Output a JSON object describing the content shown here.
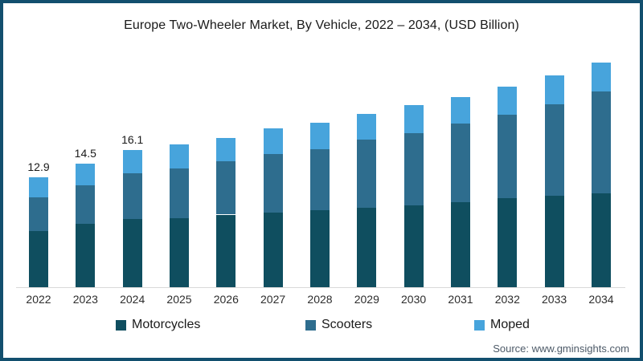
{
  "title": "Europe Two-Wheeler Market, By Vehicle, 2022 – 2034, (USD Billion)",
  "source": "Source: www.gminsights.com",
  "colors": {
    "frame_border": "#124F6E",
    "axis_line": "#D9D9D9",
    "title_text": "#1A1A1A",
    "axis_label_text": "#2D2D2D",
    "source_text": "#4D5A68"
  },
  "chart_data": {
    "type": "bar",
    "stacked": true,
    "title": "Europe Two-Wheeler Market, By Vehicle, 2022 – 2034, (USD Billion)",
    "categories": [
      "2022",
      "2023",
      "2024",
      "2025",
      "2026",
      "2027",
      "2028",
      "2029",
      "2030",
      "2031",
      "2032",
      "2033",
      "2034"
    ],
    "series": [
      {
        "name": "Motorcycles",
        "color": "#0F4E5F",
        "values": [
          6.6,
          7.4,
          8.0,
          8.1,
          8.5,
          8.7,
          9.0,
          9.3,
          9.6,
          10.0,
          10.4,
          10.7,
          11.0
        ]
      },
      {
        "name": "Scooters",
        "color": "#2E6D8E",
        "values": [
          3.9,
          4.5,
          5.3,
          5.8,
          6.2,
          6.9,
          7.2,
          8.0,
          8.4,
          9.2,
          9.8,
          10.7,
          11.9
        ]
      },
      {
        "name": "Moped",
        "color": "#47A4DC",
        "values": [
          2.4,
          2.6,
          2.8,
          2.8,
          2.8,
          3.0,
          3.1,
          3.0,
          3.3,
          3.1,
          3.3,
          3.4,
          3.4
        ]
      }
    ],
    "totals": [
      12.9,
      14.5,
      16.1,
      16.7,
      17.5,
      18.6,
      19.3,
      20.3,
      21.3,
      22.3,
      23.5,
      24.8,
      26.3
    ],
    "bar_total_labels": [
      "12.9",
      "14.5",
      "16.1",
      "",
      "",
      "",
      "",
      "",
      "",
      "",
      "",
      "",
      ""
    ],
    "xlabel": "",
    "ylabel": "",
    "units": "USD Billion",
    "ylim": [
      0,
      28
    ],
    "grid": false,
    "y_axis_visible": false,
    "legend_position": "bottom"
  }
}
